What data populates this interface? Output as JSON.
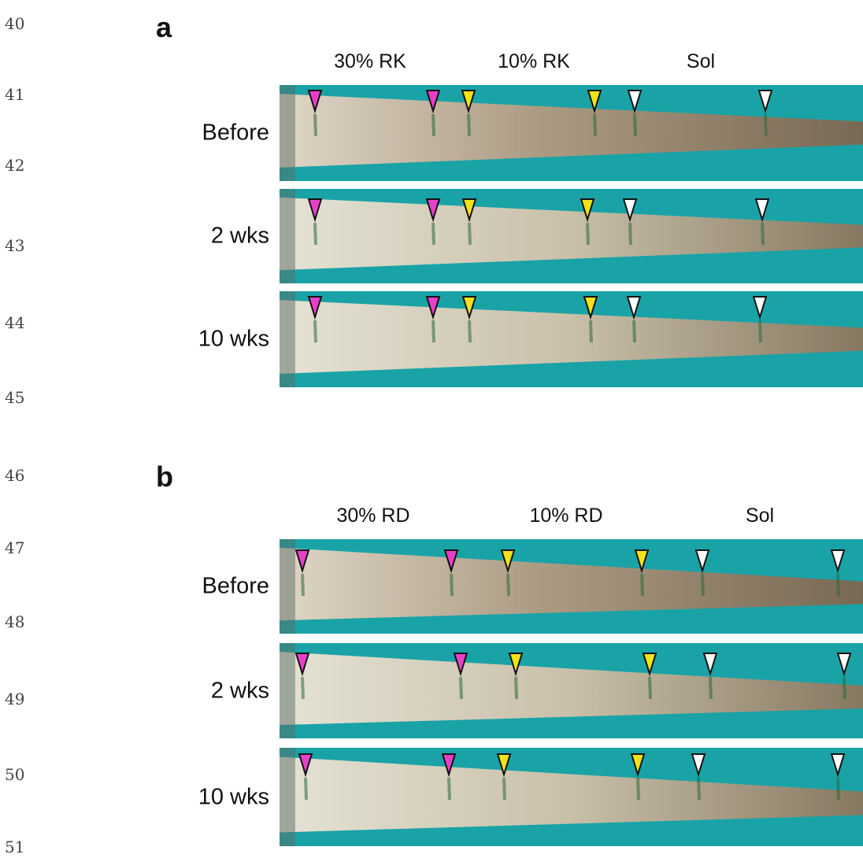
{
  "line_numbers": [
    "40",
    "41",
    "42",
    "43",
    "44",
    "45",
    "46",
    "47",
    "48",
    "49",
    "50",
    "51"
  ],
  "panels": [
    {
      "label": "a",
      "columns": [
        "30% RK",
        "10% RK",
        "Sol"
      ],
      "rows": [
        "Before",
        "2 wks",
        "10 wks"
      ]
    },
    {
      "label": "b",
      "columns": [
        "30% RD",
        "10% RD",
        "Sol"
      ],
      "rows": [
        "Before",
        "2 wks",
        "10 wks"
      ]
    }
  ]
}
